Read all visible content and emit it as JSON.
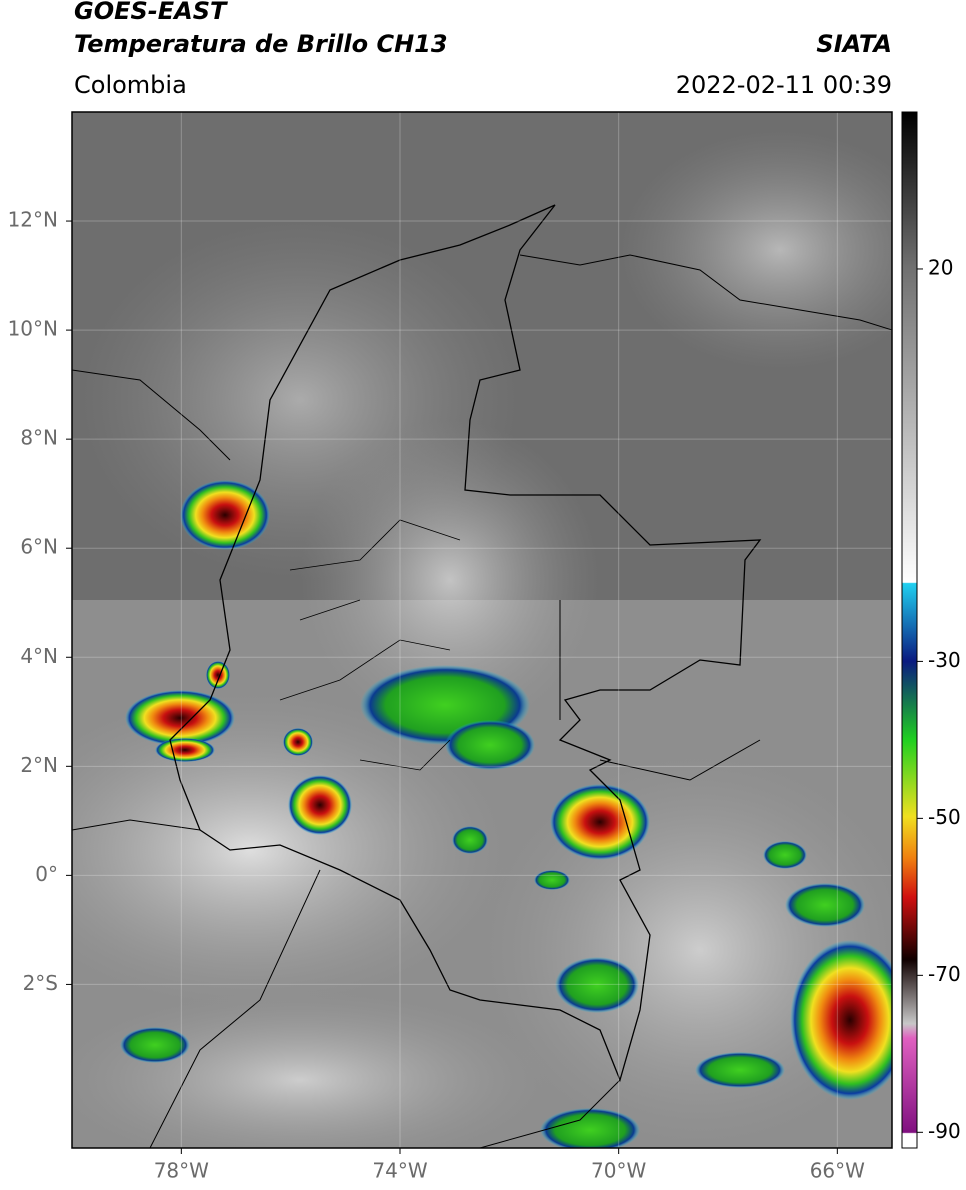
{
  "header": {
    "title_line1": "GOES-EAST",
    "title_line2": "Temperatura de Brillo CH13",
    "source": "SIATA",
    "region": "Colombia",
    "datetime": "2022-02-11 00:39"
  },
  "map": {
    "lon_range": [
      -80,
      -65
    ],
    "lat_range": [
      -5,
      14
    ],
    "grid": true,
    "lon_ticks": [
      {
        "value": -78,
        "label": "78°W"
      },
      {
        "value": -74,
        "label": "74°W"
      },
      {
        "value": -70,
        "label": "70°W"
      },
      {
        "value": -66,
        "label": "66°W"
      }
    ],
    "lat_ticks": [
      {
        "value": 12,
        "label": "12°N"
      },
      {
        "value": 10,
        "label": "10°N"
      },
      {
        "value": 8,
        "label": "8°N"
      },
      {
        "value": 6,
        "label": "6°N"
      },
      {
        "value": 4,
        "label": "4°N"
      },
      {
        "value": 2,
        "label": "2°N"
      },
      {
        "value": 0,
        "label": "0°"
      },
      {
        "value": -2,
        "label": "2°S"
      }
    ]
  },
  "colorbar": {
    "range": [
      -92,
      40
    ],
    "ticks": [
      20,
      -30,
      -50,
      -70,
      -90
    ]
  }
}
